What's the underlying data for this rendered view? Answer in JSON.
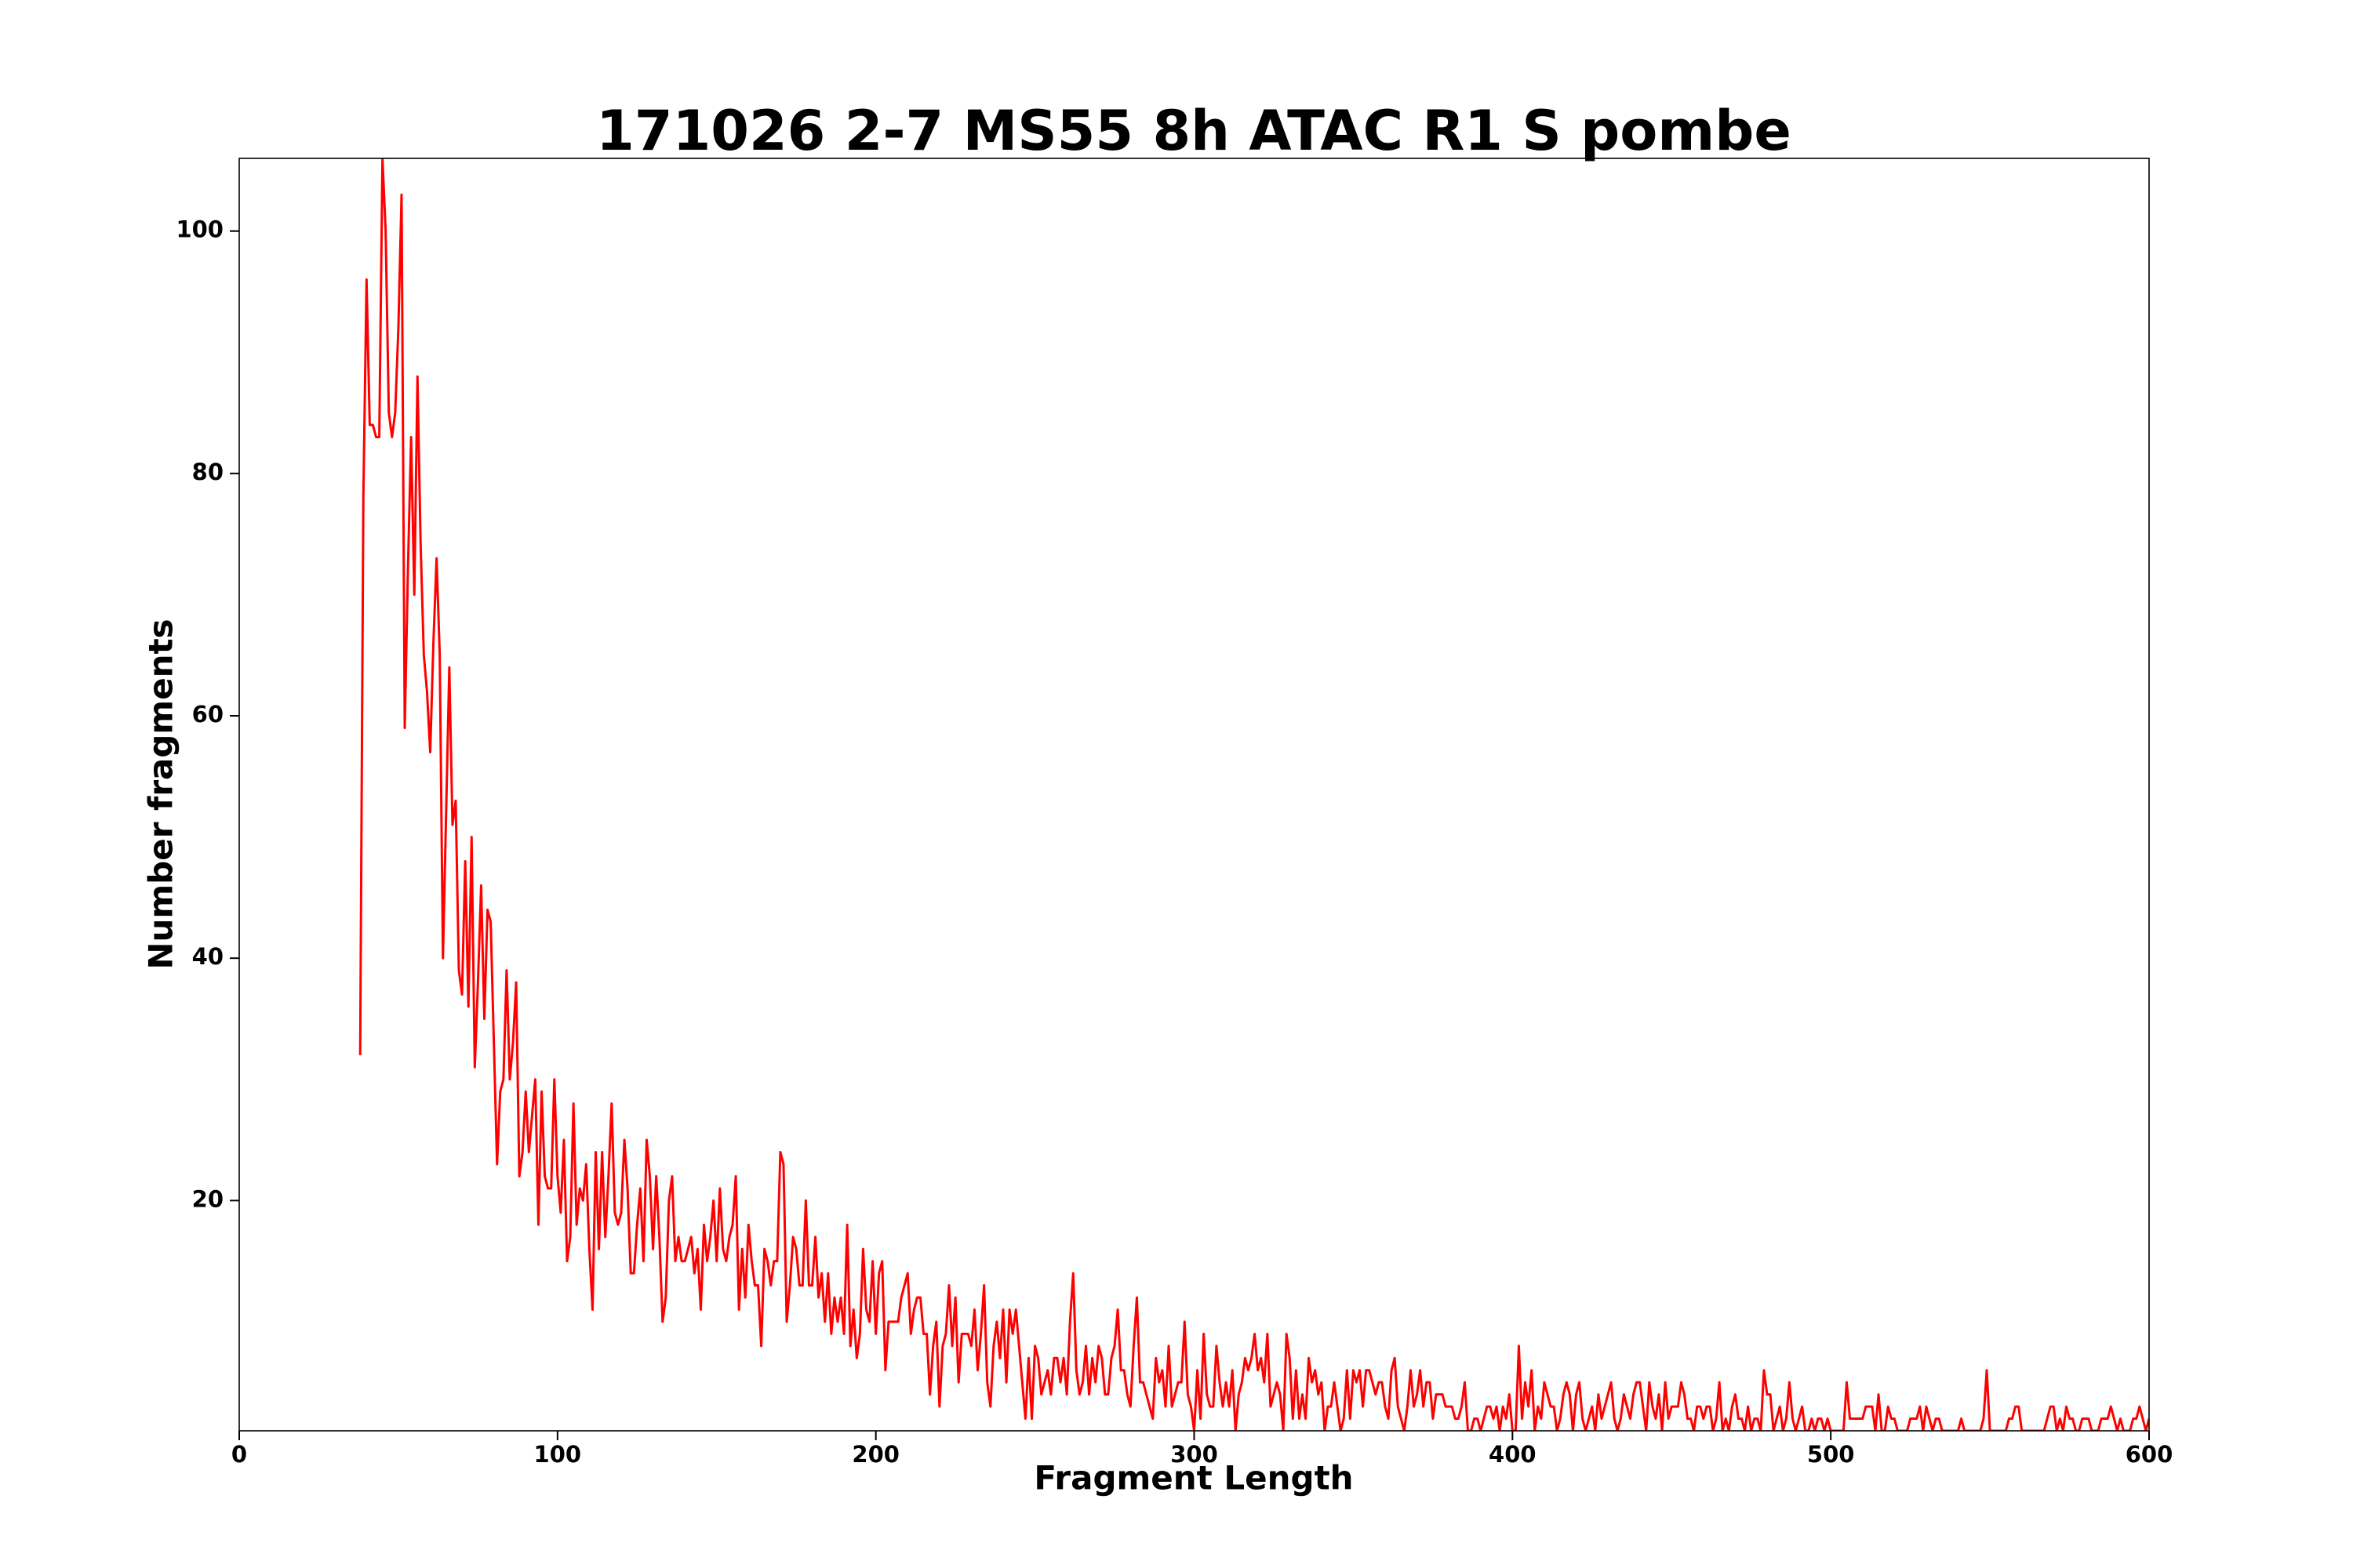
{
  "chart_data": {
    "type": "line",
    "title": "171026 2-7 MS55 8h ATAC R1 S pombe",
    "xlabel": "Fragment Length",
    "ylabel": "Number fragments",
    "color": "#ff0000",
    "xlim": [
      0,
      600
    ],
    "ylim": [
      1,
      106
    ],
    "xticks": [
      0,
      100,
      200,
      300,
      400,
      500,
      600
    ],
    "yticks": [
      20,
      40,
      60,
      80,
      100
    ],
    "grid": false,
    "x": [
      38,
      39,
      40,
      41,
      42,
      43,
      44,
      45,
      46,
      47,
      48,
      49,
      50,
      51,
      52,
      53,
      54,
      55,
      56,
      57,
      58,
      59,
      60,
      61,
      62,
      63,
      64,
      65,
      66,
      67,
      68,
      69,
      70,
      71,
      72,
      73,
      74,
      75,
      76,
      77,
      78,
      79,
      80,
      81,
      82,
      83,
      84,
      85,
      86,
      87,
      88,
      89,
      90,
      91,
      92,
      93,
      94,
      95,
      96,
      97,
      98,
      99,
      100,
      101,
      102,
      103,
      104,
      105,
      106,
      107,
      108,
      109,
      110,
      111,
      112,
      113,
      114,
      115,
      116,
      117,
      118,
      119,
      120,
      121,
      122,
      123,
      124,
      125,
      126,
      127,
      128,
      129,
      130,
      131,
      132,
      133,
      134,
      135,
      136,
      137,
      138,
      139,
      140,
      141,
      142,
      143,
      144,
      145,
      146,
      147,
      148,
      149,
      150,
      151,
      152,
      153,
      154,
      155,
      156,
      157,
      158,
      159,
      160,
      161,
      162,
      163,
      164,
      165,
      166,
      167,
      168,
      169,
      170,
      171,
      172,
      173,
      174,
      175,
      176,
      177,
      178,
      179,
      180,
      181,
      182,
      183,
      184,
      185,
      186,
      187,
      188,
      189,
      190,
      191,
      192,
      193,
      194,
      195,
      196,
      197,
      198,
      199,
      200,
      201,
      202,
      203,
      204,
      205,
      206,
      207,
      208,
      209,
      210,
      211,
      212,
      213,
      214,
      215,
      216,
      217,
      218,
      219,
      220,
      221,
      222,
      223,
      224,
      225,
      226,
      227,
      228,
      229,
      230,
      231,
      232,
      233,
      234,
      235,
      236,
      237,
      238,
      239,
      240,
      241,
      242,
      243,
      244,
      245,
      246,
      247,
      248,
      249,
      250,
      251,
      252,
      253,
      254,
      255,
      256,
      257,
      258,
      259,
      260,
      261,
      262,
      263,
      264,
      265,
      266,
      267,
      268,
      269,
      270,
      271,
      272,
      273,
      274,
      275,
      276,
      277,
      278,
      279,
      280,
      281,
      282,
      283,
      284,
      285,
      286,
      287,
      288,
      289,
      290,
      291,
      292,
      293,
      294,
      295,
      296,
      297,
      298,
      299,
      300,
      301,
      302,
      303,
      304,
      305,
      306,
      307,
      308,
      309,
      310,
      311,
      312,
      313,
      314,
      315,
      316,
      317,
      318,
      319,
      320,
      321,
      322,
      323,
      324,
      325,
      326,
      327,
      328,
      329,
      330,
      331,
      332,
      333,
      334,
      335,
      336,
      337,
      338,
      339,
      340,
      341,
      342,
      343,
      344,
      345,
      346,
      347,
      348,
      349,
      350,
      351,
      352,
      353,
      354,
      355,
      356,
      357,
      358,
      359,
      360,
      361,
      362,
      363,
      364,
      365,
      366,
      367,
      368,
      369,
      370,
      371,
      372,
      373,
      374,
      375,
      376,
      377,
      378,
      379,
      380,
      381,
      382,
      383,
      384,
      385,
      386,
      387,
      388,
      389,
      390,
      391,
      392,
      393,
      394,
      395,
      396,
      397,
      398,
      399,
      400,
      401,
      402,
      403,
      404,
      405,
      406,
      407,
      408,
      409,
      410,
      411,
      412,
      413,
      414,
      415,
      416,
      417,
      418,
      419,
      420,
      421,
      422,
      423,
      424,
      425,
      426,
      427,
      428,
      429,
      430,
      431,
      432,
      433,
      434,
      435,
      436,
      437,
      438,
      439,
      440,
      441,
      442,
      443,
      444,
      445,
      446,
      447,
      448,
      449,
      450,
      451,
      452,
      453,
      454,
      455,
      456,
      457,
      458,
      459,
      460,
      461,
      462,
      463,
      464,
      465,
      466,
      467,
      468,
      469,
      470,
      471,
      472,
      473,
      474,
      475,
      476,
      477,
      478,
      479,
      480,
      481,
      482,
      483,
      484,
      485,
      486,
      487,
      488,
      489,
      490,
      491,
      492,
      493,
      494,
      495,
      496,
      497,
      498,
      499,
      500,
      501,
      502,
      503,
      504,
      505,
      506,
      507,
      508,
      509,
      510,
      511,
      512,
      513,
      514,
      515,
      516,
      517,
      518,
      519,
      520,
      521,
      522,
      523,
      524,
      525,
      526,
      527,
      528,
      529,
      530,
      531,
      532,
      533,
      534,
      535,
      536,
      537,
      538,
      539,
      540,
      541,
      542,
      543,
      544,
      545,
      546,
      547,
      548,
      549,
      550,
      551,
      552,
      553,
      554,
      555,
      556,
      557,
      558,
      559,
      560,
      561,
      562,
      563,
      564,
      565,
      566,
      567,
      568,
      569,
      570,
      571,
      572,
      573,
      574,
      575,
      576,
      577,
      578,
      579,
      580,
      581,
      582,
      583,
      584,
      585,
      586,
      587,
      588,
      589,
      590,
      591,
      592,
      593,
      594,
      595,
      596,
      597,
      598,
      599,
      600
    ],
    "values": [
      32,
      78,
      96,
      84,
      84,
      83,
      83,
      106,
      100,
      85,
      83,
      85,
      92,
      103,
      59,
      72,
      83,
      70,
      88,
      74,
      65,
      62,
      57,
      66,
      73,
      65,
      40,
      52,
      64,
      51,
      53,
      39,
      37,
      48,
      36,
      50,
      31,
      38,
      46,
      35,
      44,
      43,
      33,
      23,
      29,
      30,
      39,
      30,
      33,
      38,
      22,
      24,
      29,
      24,
      27,
      30,
      18,
      29,
      22,
      21,
      21,
      30,
      22,
      19,
      25,
      15,
      17,
      28,
      18,
      21,
      20,
      23,
      16,
      11,
      24,
      16,
      24,
      17,
      22,
      28,
      19,
      18,
      19,
      25,
      21,
      14,
      14,
      18,
      21,
      15,
      25,
      22,
      16,
      22,
      17,
      10,
      12,
      20,
      22,
      15,
      17,
      15,
      15,
      16,
      17,
      14,
      16,
      11,
      18,
      15,
      17,
      20,
      15,
      21,
      16,
      15,
      17,
      18,
      22,
      11,
      16,
      12,
      18,
      15,
      13,
      13,
      8,
      16,
      15,
      13,
      15,
      15,
      24,
      23,
      10,
      13,
      17,
      16,
      13,
      13,
      20,
      13,
      13,
      17,
      12,
      14,
      10,
      14,
      9,
      12,
      10,
      12,
      9,
      18,
      8,
      11,
      7,
      9,
      16,
      11,
      10,
      15,
      9,
      14,
      15,
      6,
      10,
      10,
      10,
      10,
      12,
      13,
      14,
      9,
      11,
      12,
      12,
      9,
      9,
      4,
      8,
      10,
      3,
      8,
      9,
      13,
      8,
      12,
      5,
      9,
      9,
      9,
      8,
      11,
      6,
      9,
      13,
      5,
      3,
      8,
      10,
      7,
      11,
      5,
      11,
      9,
      11,
      8,
      5,
      2,
      7,
      2,
      8,
      7,
      4,
      5,
      6,
      4,
      7,
      7,
      5,
      7,
      4,
      10,
      14,
      6,
      4,
      5,
      8,
      4,
      7,
      5,
      8,
      7,
      4,
      4,
      7,
      8,
      11,
      6,
      6,
      4,
      3,
      8,
      12,
      5,
      5,
      4,
      3,
      2,
      7,
      5,
      6,
      3,
      8,
      3,
      4,
      5,
      5,
      10,
      4,
      3,
      1,
      6,
      2,
      9,
      4,
      3,
      3,
      8,
      5,
      3,
      5,
      3,
      6,
      1,
      4,
      5,
      7,
      6,
      7,
      9,
      6,
      7,
      5,
      9,
      3,
      4,
      5,
      4,
      1,
      9,
      7,
      2,
      6,
      2,
      4,
      2,
      7,
      5,
      6,
      4,
      5,
      1,
      3,
      3,
      5,
      3,
      1,
      2,
      6,
      2,
      6,
      5,
      6,
      3,
      6,
      6,
      5,
      4,
      5,
      5,
      3,
      2,
      6,
      7,
      3,
      2,
      1,
      3,
      6,
      3,
      4,
      6,
      3,
      5,
      5,
      2,
      4,
      4,
      4,
      3,
      3,
      3,
      2,
      2,
      3,
      5,
      1,
      1,
      2,
      2,
      1,
      2,
      3,
      3,
      2,
      3,
      1,
      3,
      2,
      4,
      1,
      1,
      8,
      2,
      5,
      3,
      6,
      1,
      3,
      2,
      5,
      4,
      3,
      3,
      1,
      2,
      4,
      5,
      4,
      1,
      4,
      5,
      2,
      1,
      2,
      3,
      1,
      4,
      2,
      3,
      4,
      5,
      2,
      1,
      2,
      4,
      3,
      2,
      4,
      5,
      5,
      3,
      1,
      5,
      3,
      2,
      4,
      1,
      5,
      2,
      3,
      3,
      3,
      5,
      4,
      2,
      2,
      1,
      3,
      3,
      2,
      3,
      3,
      1,
      2,
      5,
      1,
      2,
      1,
      3,
      4,
      2,
      2,
      1,
      3,
      1,
      2,
      2,
      1,
      6,
      4,
      4,
      1,
      2,
      3,
      1,
      2,
      5,
      2,
      1,
      2,
      3,
      1,
      1,
      2,
      1,
      2,
      2,
      1,
      2,
      1,
      1,
      1,
      1,
      1,
      5,
      2,
      2,
      2,
      2,
      2,
      3,
      3,
      3,
      1,
      4,
      1,
      1,
      3,
      2,
      2,
      1,
      1,
      1,
      1,
      2,
      2,
      2,
      3,
      1,
      3,
      2,
      1,
      2,
      2,
      1,
      1,
      1,
      1,
      1,
      1,
      2,
      1,
      1,
      1,
      1,
      1,
      1,
      2,
      6,
      1,
      1,
      1,
      1,
      1,
      1,
      2,
      2,
      3,
      3,
      1,
      1,
      1,
      1,
      1,
      1,
      1,
      1,
      2,
      3,
      3,
      1,
      2,
      1,
      3,
      2,
      2,
      1,
      1,
      2,
      2,
      2,
      1,
      1,
      1,
      2,
      2,
      2,
      3,
      2,
      1,
      2,
      1,
      1,
      1,
      2,
      2,
      3,
      2,
      1,
      2
    ]
  }
}
